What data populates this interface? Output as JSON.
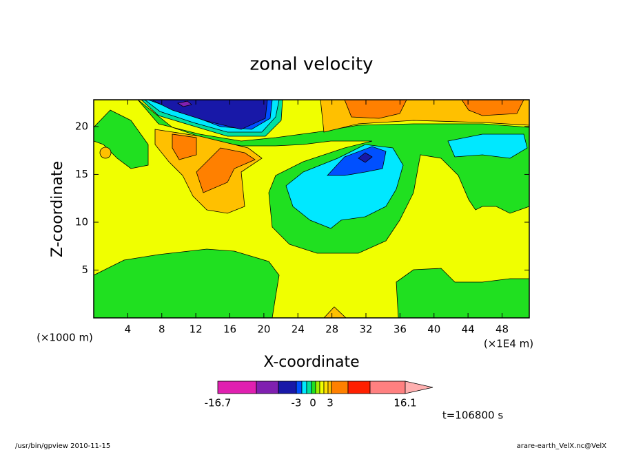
{
  "chart_data": {
    "type": "contour",
    "title": "zonal velocity",
    "x_label": "X-coordinate",
    "y_label": "Z-coordinate",
    "x_unit": "(×1E4 m)",
    "y_unit": "(×1000 m)",
    "xlim": [
      0,
      51.2
    ],
    "ylim": [
      0,
      22.8
    ],
    "xticks": [
      4,
      8,
      12,
      16,
      20,
      24,
      28,
      32,
      36,
      40,
      44,
      48
    ],
    "yticks": [
      5,
      10,
      15,
      20
    ],
    "colorbar": {
      "ticks": [
        -16.7,
        -3,
        0,
        3,
        16.1
      ],
      "colors": [
        "#e020b0",
        "#8020b0",
        "#1818a8",
        "#0050ff",
        "#00e8ff",
        "#00e0a0",
        "#20e020",
        "#a0f000",
        "#f0ff00",
        "#ffe000",
        "#ffc000",
        "#ff8000",
        "#ff2000",
        "#ff8080"
      ],
      "extend_color": "#ffb0b0"
    },
    "annotation": "t=106800 s",
    "footer_left": "/usr/bin/gpview  2010-11-15",
    "footer_right": "arare-earth_VelX.nc@VelX"
  }
}
